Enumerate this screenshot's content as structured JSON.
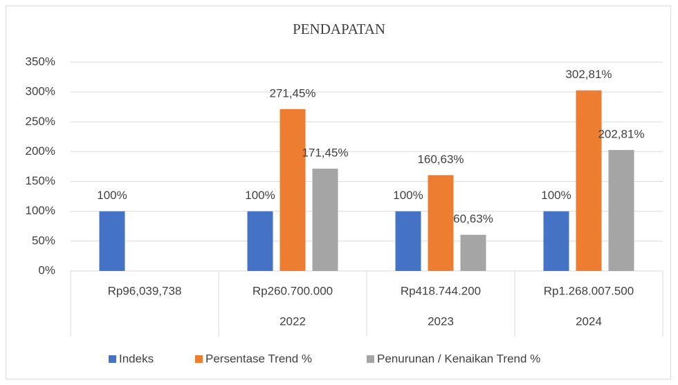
{
  "chart_data": {
    "type": "bar",
    "title": "PENDAPATAN",
    "categories": [
      "Rp96,039,738",
      "Rp260.700.000",
      "Rp418.744.200",
      "Rp1.268.007.500"
    ],
    "category_groups": [
      null,
      "2022",
      "2023",
      "2024"
    ],
    "series": [
      {
        "name": "Indeks",
        "color": "#4472c4",
        "values": [
          100,
          100,
          100,
          100
        ],
        "value_labels": [
          "100%",
          "100%",
          "100%",
          "100%"
        ]
      },
      {
        "name": "Persentase Trend %",
        "color": "#ed7d31",
        "values": [
          null,
          271.45,
          160.63,
          302.81
        ],
        "value_labels": [
          null,
          "271,45%",
          "160,63%",
          "302,81%"
        ]
      },
      {
        "name": "Penurunan / Kenaikan Trend %",
        "color": "#a5a5a5",
        "values": [
          null,
          171.45,
          60.63,
          202.81
        ],
        "value_labels": [
          null,
          "171,45%",
          "60,63%",
          "202,81%"
        ]
      }
    ],
    "ylim": [
      0,
      350
    ],
    "yticks": [
      {
        "value": 0,
        "label": "0%"
      },
      {
        "value": 50,
        "label": "50%"
      },
      {
        "value": 100,
        "label": "100%"
      },
      {
        "value": 150,
        "label": "150%"
      },
      {
        "value": 200,
        "label": "200%"
      },
      {
        "value": 250,
        "label": "250%"
      },
      {
        "value": 300,
        "label": "300%"
      },
      {
        "value": 350,
        "label": "350%"
      }
    ],
    "grid": true,
    "legend": "bottom"
  }
}
